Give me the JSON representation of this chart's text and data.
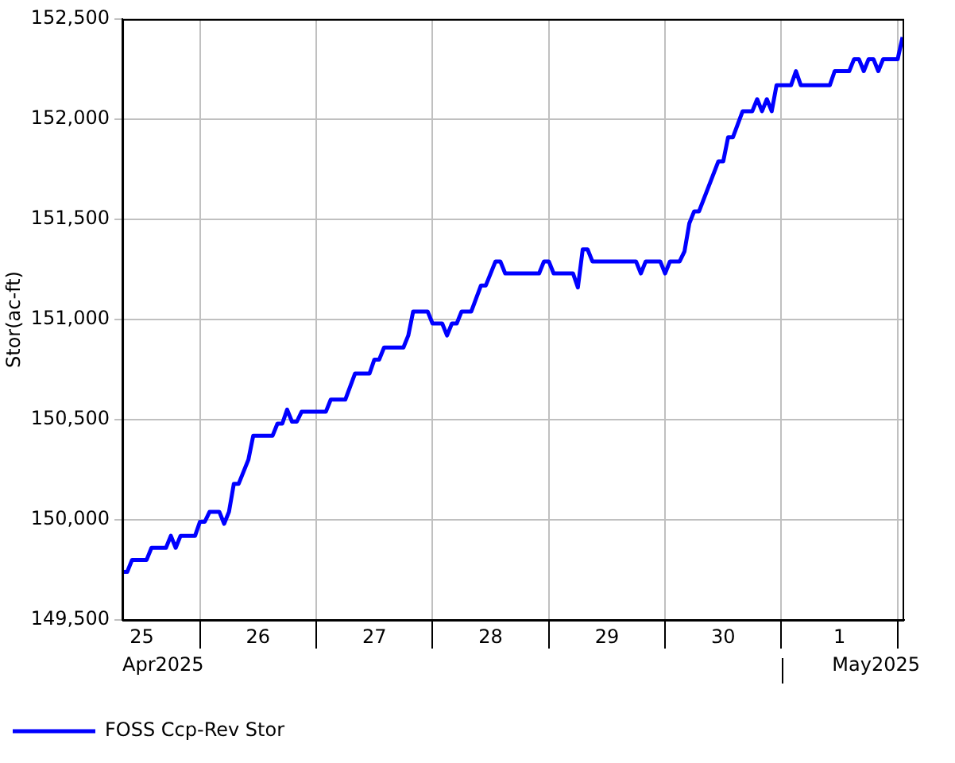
{
  "chart_data": {
    "type": "line",
    "ylabel": "Stor(ac-ft)",
    "xlim": [
      "2025-04-25T08:00",
      "2025-05-02T01:20"
    ],
    "xticks": [
      {
        "value": "2025-04-25T12:00",
        "label": "25"
      },
      {
        "value": "2025-04-26",
        "label": null
      },
      {
        "value": "2025-04-26T12:00",
        "label": "26"
      },
      {
        "value": "2025-04-27",
        "label": null
      },
      {
        "value": "2025-04-27T12:00",
        "label": "27"
      },
      {
        "value": "2025-04-28",
        "label": null
      },
      {
        "value": "2025-04-28T12:00",
        "label": "28"
      },
      {
        "value": "2025-04-29",
        "label": null
      },
      {
        "value": "2025-04-29T12:00",
        "label": "29"
      },
      {
        "value": "2025-04-30",
        "label": null
      },
      {
        "value": "2025-04-30T12:00",
        "label": "30"
      },
      {
        "value": "2025-05-01",
        "label": null
      },
      {
        "value": "2025-05-01T12:00",
        "label": "1"
      },
      {
        "value": "2025-05-02",
        "label": null
      }
    ],
    "ylim": [
      149500,
      152500
    ],
    "yticks": [
      {
        "value": 149500,
        "label": "149,500"
      },
      {
        "value": 150000,
        "label": "150,000"
      },
      {
        "value": 150500,
        "label": "150,500"
      },
      {
        "value": 151000,
        "label": "151,000"
      },
      {
        "value": 151500,
        "label": "151,500"
      },
      {
        "value": 152000,
        "label": "152,000"
      },
      {
        "value": 152500,
        "label": "152,500"
      }
    ],
    "grid": true,
    "legend": "bottom left",
    "marker": "none",
    "line_style": "solid",
    "annotations": [
      "Apr2025",
      "May2025"
    ],
    "x": [
      "2025-04-25T08:00",
      "2025-04-25T09:00",
      "2025-04-25T10:00",
      "2025-04-25T13:00",
      "2025-04-25T14:00",
      "2025-04-25T17:00",
      "2025-04-25T18:00",
      "2025-04-25T19:00",
      "2025-04-25T20:00",
      "2025-04-25T23:00",
      "2025-04-26T00:00",
      "2025-04-26T01:00",
      "2025-04-26T02:00",
      "2025-04-26T04:00",
      "2025-04-26T05:00",
      "2025-04-26T06:00",
      "2025-04-26T07:00",
      "2025-04-26T08:00",
      "2025-04-26T10:00",
      "2025-04-26T11:00",
      "2025-04-26T15:00",
      "2025-04-26T16:00",
      "2025-04-26T17:00",
      "2025-04-26T18:00",
      "2025-04-26T19:00",
      "2025-04-26T20:00",
      "2025-04-26T21:00",
      "2025-04-27T02:00",
      "2025-04-27T03:00",
      "2025-04-27T06:00",
      "2025-04-27T08:00",
      "2025-04-27T11:00",
      "2025-04-27T12:00",
      "2025-04-27T13:00",
      "2025-04-27T14:00",
      "2025-04-27T18:00",
      "2025-04-27T19:00",
      "2025-04-27T20:00",
      "2025-04-27T23:00",
      "2025-04-28T00:00",
      "2025-04-28T02:00",
      "2025-04-28T03:00",
      "2025-04-28T04:00",
      "2025-04-28T05:00",
      "2025-04-28T06:00",
      "2025-04-28T08:00",
      "2025-04-28T10:00",
      "2025-04-28T11:00",
      "2025-04-28T13:00",
      "2025-04-28T14:00",
      "2025-04-28T15:00",
      "2025-04-28T22:00",
      "2025-04-28T23:00",
      "2025-04-29T00:00",
      "2025-04-29T01:00",
      "2025-04-29T05:00",
      "2025-04-29T06:00",
      "2025-04-29T07:00",
      "2025-04-29T08:00",
      "2025-04-29T09:00",
      "2025-04-29T18:00",
      "2025-04-29T19:00",
      "2025-04-29T20:00",
      "2025-04-29T23:00",
      "2025-04-30T00:00",
      "2025-04-30T01:00",
      "2025-04-30T03:00",
      "2025-04-30T04:00",
      "2025-04-30T05:00",
      "2025-04-30T06:00",
      "2025-04-30T07:00",
      "2025-04-30T11:00",
      "2025-04-30T12:00",
      "2025-04-30T13:00",
      "2025-04-30T14:00",
      "2025-04-30T16:00",
      "2025-04-30T18:00",
      "2025-04-30T19:00",
      "2025-04-30T20:00",
      "2025-04-30T21:00",
      "2025-04-30T22:00",
      "2025-04-30T23:00",
      "2025-05-01T02:00",
      "2025-05-01T03:00",
      "2025-05-01T04:00",
      "2025-05-01T10:00",
      "2025-05-01T11:00",
      "2025-05-01T14:00",
      "2025-05-01T15:00",
      "2025-05-01T16:00",
      "2025-05-01T17:00",
      "2025-05-01T18:00",
      "2025-05-01T19:00",
      "2025-05-01T20:00",
      "2025-05-01T21:00",
      "2025-05-02T00:00",
      "2025-05-02T01:00"
    ],
    "series": [
      {
        "name": "FOSS Ccp-Rev Stor",
        "color": "#0000ff",
        "values": [
          149740,
          149740,
          149800,
          149800,
          149860,
          149860,
          149920,
          149860,
          149920,
          149920,
          149990,
          149990,
          150040,
          150040,
          149980,
          150040,
          150180,
          150180,
          150300,
          150420,
          150420,
          150480,
          150480,
          150550,
          150490,
          150490,
          150540,
          150540,
          150600,
          150600,
          150730,
          150730,
          150800,
          150800,
          150860,
          150860,
          150920,
          151040,
          151040,
          150980,
          150980,
          150920,
          150980,
          150980,
          151040,
          151040,
          151170,
          151170,
          151290,
          151290,
          151230,
          151230,
          151290,
          151290,
          151230,
          151230,
          151160,
          151350,
          151350,
          151290,
          151290,
          151230,
          151290,
          151290,
          151230,
          151290,
          151290,
          151340,
          151480,
          151540,
          151540,
          151790,
          151790,
          151910,
          151910,
          152040,
          152040,
          152100,
          152040,
          152100,
          152040,
          152170,
          152170,
          152240,
          152170,
          152170,
          152240,
          152240,
          152300,
          152300,
          152240,
          152300,
          152300,
          152240,
          152300,
          152300,
          152410
        ]
      }
    ]
  }
}
